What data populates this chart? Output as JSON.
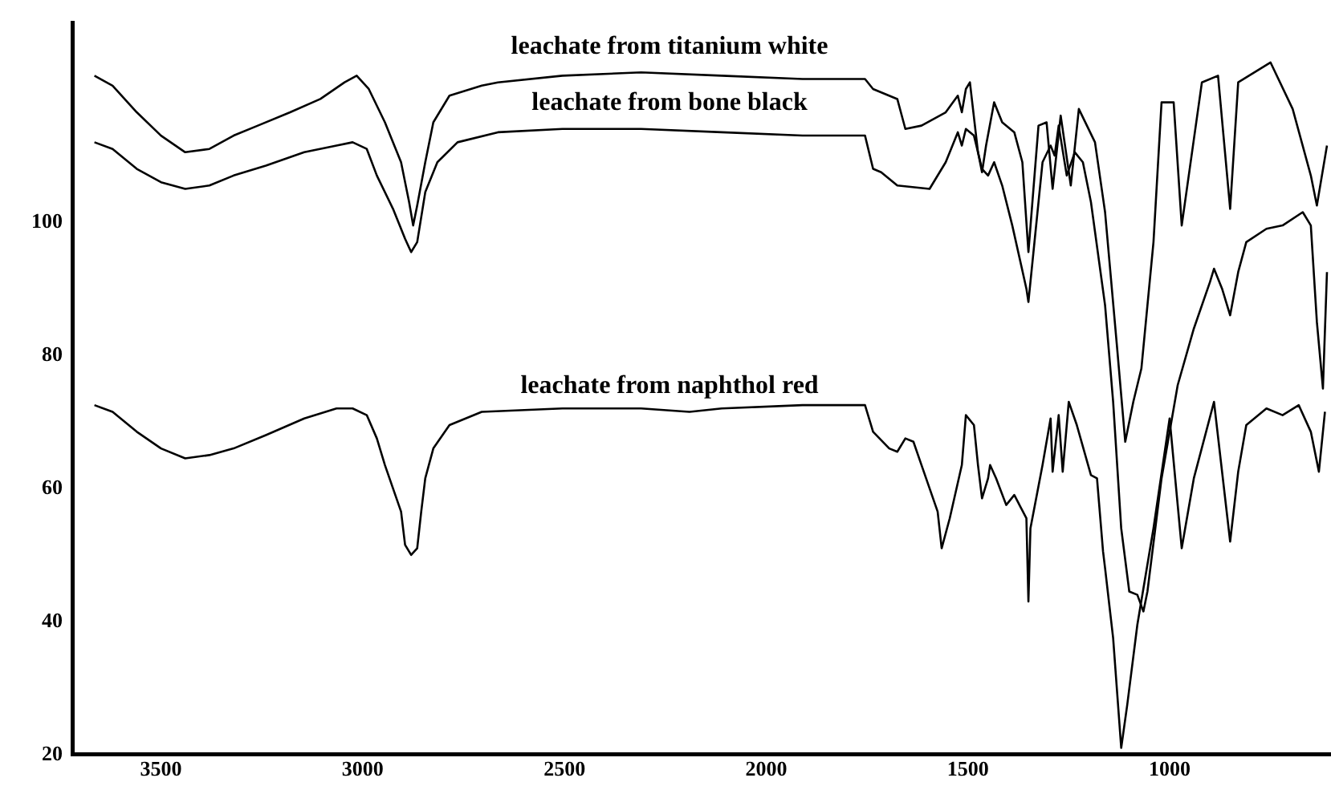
{
  "chart_data": {
    "type": "line",
    "xlim": [
      3720,
      600
    ],
    "xticks": [
      3500,
      3000,
      2500,
      2000,
      1500,
      1000
    ],
    "ylim": [
      20,
      130
    ],
    "yticks": [
      20,
      40,
      60,
      80,
      100
    ],
    "grid": false,
    "legend": false,
    "marker": "none",
    "line_style": "solid",
    "series": [
      {
        "name": "leachate from titanium white",
        "color": "#000000",
        "x": [
          3665,
          3620,
          3560,
          3500,
          3440,
          3380,
          3320,
          3260,
          3180,
          3105,
          3045,
          3015,
          2985,
          2945,
          2905,
          2885,
          2875,
          2865,
          2845,
          2825,
          2785,
          2705,
          2665,
          2505,
          2310,
          2110,
          1910,
          1755,
          1735,
          1675,
          1655,
          1615,
          1555,
          1525,
          1515,
          1505,
          1495,
          1475,
          1465,
          1455,
          1435,
          1415,
          1385,
          1365,
          1350,
          1325,
          1305,
          1290,
          1270,
          1245,
          1225,
          1185,
          1160,
          1130,
          1110,
          1090,
          1070,
          1040,
          1020,
          990,
          970,
          920,
          880,
          850,
          830,
          750,
          695,
          650,
          635,
          610
        ],
        "values": [
          122,
          120.5,
          116.5,
          113,
          110.5,
          111,
          113,
          114.5,
          116.5,
          118.5,
          121,
          122,
          120,
          115,
          109,
          103,
          99.5,
          102.5,
          109,
          115,
          119,
          120.5,
          121,
          122,
          122.5,
          122,
          121.5,
          121.5,
          120,
          118.5,
          114,
          114.5,
          116.5,
          119,
          116.5,
          120,
          121,
          110.5,
          107.5,
          111.5,
          118,
          115,
          113.5,
          109,
          95.5,
          114.5,
          115,
          105,
          116,
          105.5,
          117,
          112,
          101.5,
          81,
          67,
          73,
          78,
          97,
          118,
          118,
          99.5,
          121,
          122,
          102,
          121,
          124,
          117,
          107,
          102.5,
          111.5
        ]
      },
      {
        "name": "leachate from bone black",
        "color": "#000000",
        "x": [
          3665,
          3620,
          3560,
          3500,
          3440,
          3380,
          3320,
          3240,
          3145,
          3065,
          3025,
          2990,
          2965,
          2925,
          2895,
          2880,
          2865,
          2845,
          2815,
          2765,
          2665,
          2505,
          2310,
          2110,
          1910,
          1755,
          1735,
          1715,
          1675,
          1595,
          1555,
          1525,
          1515,
          1505,
          1485,
          1465,
          1450,
          1435,
          1415,
          1390,
          1355,
          1350,
          1335,
          1315,
          1295,
          1285,
          1275,
          1255,
          1235,
          1215,
          1195,
          1160,
          1140,
          1120,
          1100,
          1080,
          1065,
          1055,
          1020,
          980,
          940,
          900,
          890,
          870,
          850,
          830,
          810,
          760,
          720,
          670,
          650,
          635,
          620,
          610
        ],
        "values": [
          112,
          111,
          108,
          106,
          105,
          105.5,
          107,
          108.5,
          110.5,
          111.5,
          112,
          111,
          107,
          102,
          97.5,
          95.5,
          97,
          104.5,
          109,
          112,
          113.5,
          114,
          114,
          113.5,
          113,
          113,
          108,
          107.5,
          105.5,
          105,
          109,
          113.5,
          111.5,
          114,
          113,
          108,
          107,
          109,
          105.5,
          99.5,
          90,
          88,
          97,
          109,
          111.5,
          110,
          114.5,
          107,
          110.5,
          109,
          103,
          87.5,
          73,
          54,
          44.5,
          44,
          41.5,
          44.5,
          61.5,
          75.5,
          84,
          91,
          93,
          90,
          86,
          92.5,
          97,
          99,
          99.5,
          101.5,
          99.5,
          85,
          75,
          92.5
        ]
      },
      {
        "name": "leachate from naphthol red",
        "color": "#000000",
        "x": [
          3665,
          3620,
          3560,
          3500,
          3440,
          3380,
          3320,
          3240,
          3145,
          3065,
          3025,
          2990,
          2965,
          2945,
          2925,
          2905,
          2895,
          2880,
          2865,
          2855,
          2845,
          2825,
          2785,
          2705,
          2505,
          2310,
          2190,
          2110,
          1910,
          1755,
          1735,
          1695,
          1675,
          1655,
          1635,
          1615,
          1575,
          1565,
          1545,
          1515,
          1505,
          1485,
          1475,
          1465,
          1450,
          1445,
          1430,
          1405,
          1385,
          1355,
          1350,
          1345,
          1315,
          1295,
          1290,
          1275,
          1265,
          1250,
          1230,
          1195,
          1180,
          1165,
          1160,
          1140,
          1120,
          1105,
          1080,
          1040,
          1000,
          970,
          940,
          890,
          850,
          830,
          810,
          760,
          720,
          680,
          650,
          630,
          615
        ],
        "values": [
          72.5,
          71.5,
          68.5,
          66,
          64.5,
          65,
          66,
          68,
          70.5,
          72,
          72,
          71,
          67.5,
          63.5,
          60,
          56.5,
          51.5,
          50,
          51,
          56.5,
          61.5,
          66,
          69.5,
          71.5,
          72,
          72,
          71.5,
          72,
          72.5,
          72.5,
          68.5,
          66,
          65.5,
          67.5,
          67,
          63.5,
          56.5,
          51,
          55.5,
          63.5,
          71,
          69.5,
          63.5,
          58.5,
          61.5,
          63.5,
          61.5,
          57.5,
          59,
          55.5,
          43,
          54,
          63.5,
          70.5,
          62.5,
          71,
          62.5,
          73,
          69.5,
          62,
          61.5,
          50.5,
          48,
          37.5,
          21,
          27.5,
          39.5,
          54,
          70.5,
          51,
          61.5,
          73,
          52,
          62.5,
          69.5,
          72,
          71,
          72.5,
          68.5,
          62.5,
          71.5
        ]
      }
    ]
  }
}
